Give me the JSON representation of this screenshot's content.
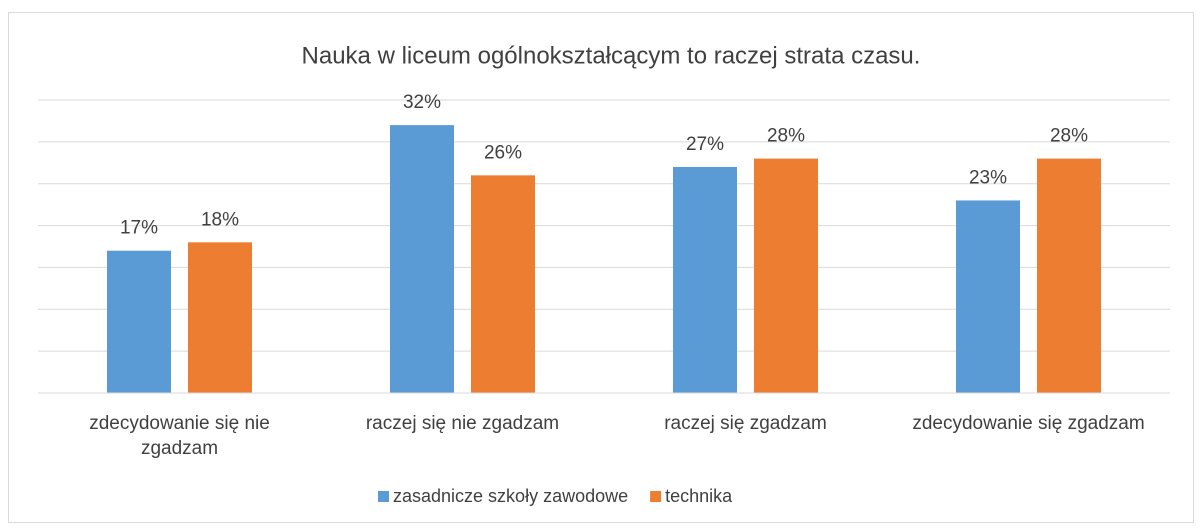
{
  "chart_data": {
    "type": "bar",
    "title": "Nauka w liceum ogólnokształcącym to raczej strata czasu.",
    "categories": [
      "zdecydowanie się nie zgadzam",
      "raczej się nie zgadzam",
      "raczej się zgadzam",
      "zdecydowanie się zgadzam"
    ],
    "series": [
      {
        "name": "zasadnicze szkoły zawodowe",
        "color": "#5b9bd5",
        "values": [
          17,
          32,
          27,
          23
        ],
        "value_labels": [
          "17%",
          "32%",
          "27%",
          "23%"
        ]
      },
      {
        "name": "technika",
        "color": "#ed7d31",
        "values": [
          18,
          26,
          28,
          28
        ],
        "value_labels": [
          "18%",
          "26%",
          "28%",
          "28%"
        ]
      }
    ],
    "ylim": [
      0,
      35
    ],
    "yticks": [
      0,
      5,
      10,
      15,
      20,
      25,
      30,
      35
    ],
    "grid": true,
    "legend": "bottom"
  }
}
